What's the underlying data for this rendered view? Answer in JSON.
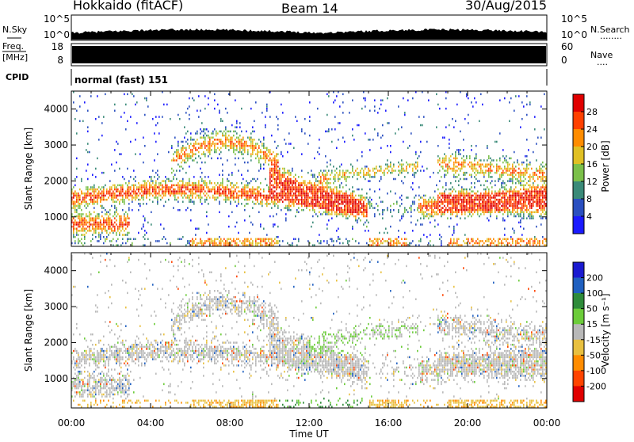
{
  "header": {
    "station": "Hokkaido (fitACF)",
    "beam": "Beam 14",
    "date": "30/Aug/2015"
  },
  "nsky_panel": {
    "left_label": "N.Sky",
    "right_label": "N.Search",
    "right_dots": "........",
    "left_ticks": [
      "10^5",
      "10^0"
    ],
    "right_ticks": [
      "10^5",
      "10^0"
    ]
  },
  "freq_panel": {
    "label_line1": "Freq.",
    "label_line2": "[MHz]",
    "left_ticks": [
      "18",
      "8"
    ],
    "right_ticks": [
      "60",
      "0"
    ],
    "right_label": "Nave",
    "right_dots": "...."
  },
  "cpid_panel": {
    "label": "CPID",
    "mode": "normal (fast) 151"
  },
  "chart_data": [
    {
      "type": "heatmap",
      "name": "power",
      "ylabel": "Slant Range [km]",
      "ylim": [
        180,
        4500
      ],
      "yticks": [
        1000,
        2000,
        3000,
        4000
      ],
      "xlim": [
        0,
        24
      ],
      "colorbar": {
        "label": "Power [dB]",
        "ticks": [
          "4",
          "8",
          "12",
          "16",
          "20",
          "24",
          "28"
        ],
        "range": [
          0,
          32
        ],
        "colors": [
          "#1a1aff",
          "#2a4fc0",
          "#3a8a78",
          "#7bc04a",
          "#e0c024",
          "#ff8c00",
          "#ff4000",
          "#e00000"
        ]
      }
    },
    {
      "type": "heatmap",
      "name": "velocity",
      "ylabel": "Slant Range [km]",
      "ylim": [
        180,
        4500
      ],
      "yticks": [
        1000,
        2000,
        3000,
        4000
      ],
      "xlim": [
        0,
        24
      ],
      "colorbar": {
        "label": "Velocity [m s⁻¹]",
        "ticks": [
          "200",
          "100",
          "50",
          "15",
          "-15",
          "-50",
          "-100",
          "-200"
        ],
        "colors": [
          "#1a1ad0",
          "#2060c0",
          "#2e8b3a",
          "#6ccc3a",
          "#b8b8b8",
          "#e8c040",
          "#ff8c00",
          "#ff4400",
          "#e00000"
        ]
      }
    }
  ],
  "xaxis": {
    "label": "Time UT",
    "ticks": [
      "00:00",
      "04:00",
      "08:00",
      "12:00",
      "16:00",
      "20:00",
      "00:00"
    ]
  }
}
